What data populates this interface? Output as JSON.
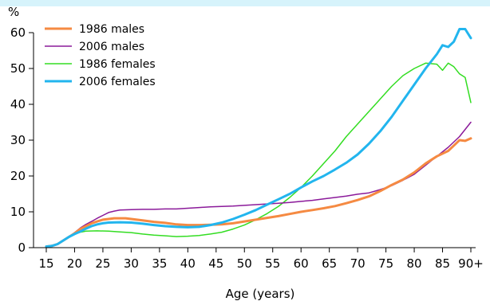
{
  "chart_data": {
    "type": "line",
    "title": "",
    "xlabel": "Age (years)",
    "ylabel": "%",
    "x_tick_labels": [
      "15",
      "20",
      "25",
      "30",
      "35",
      "40",
      "45",
      "50",
      "55",
      "60",
      "65",
      "70",
      "75",
      "80",
      "85",
      "90+"
    ],
    "y_ticks": [
      0,
      10,
      20,
      30,
      40,
      50,
      60
    ],
    "xlim": [
      15,
      90
    ],
    "ylim": [
      0,
      60
    ],
    "grid": false,
    "legend_position": "top-left",
    "series": [
      {
        "name": "1986 males",
        "color": "#f58a42",
        "points": [
          [
            15,
            0.3
          ],
          [
            16,
            0.5
          ],
          [
            17,
            1.0
          ],
          [
            18,
            2.0
          ],
          [
            19,
            3.0
          ],
          [
            20,
            4.0
          ],
          [
            21,
            5.2
          ],
          [
            22,
            6.0
          ],
          [
            23,
            6.8
          ],
          [
            24,
            7.3
          ],
          [
            25,
            7.8
          ],
          [
            26,
            8.0
          ],
          [
            27,
            8.2
          ],
          [
            28,
            8.2
          ],
          [
            29,
            8.2
          ],
          [
            30,
            8.0
          ],
          [
            32,
            7.6
          ],
          [
            34,
            7.2
          ],
          [
            36,
            6.9
          ],
          [
            38,
            6.5
          ],
          [
            40,
            6.3
          ],
          [
            42,
            6.3
          ],
          [
            44,
            6.4
          ],
          [
            46,
            6.5
          ],
          [
            48,
            6.8
          ],
          [
            50,
            7.3
          ],
          [
            52,
            7.8
          ],
          [
            54,
            8.3
          ],
          [
            56,
            8.8
          ],
          [
            58,
            9.4
          ],
          [
            60,
            10.0
          ],
          [
            62,
            10.5
          ],
          [
            64,
            11.0
          ],
          [
            66,
            11.6
          ],
          [
            68,
            12.4
          ],
          [
            70,
            13.3
          ],
          [
            72,
            14.3
          ],
          [
            74,
            15.8
          ],
          [
            76,
            17.5
          ],
          [
            78,
            19.0
          ],
          [
            80,
            21.0
          ],
          [
            82,
            23.5
          ],
          [
            84,
            25.5
          ],
          [
            86,
            27.0
          ],
          [
            87,
            28.5
          ],
          [
            88,
            30.0
          ],
          [
            89,
            29.8
          ],
          [
            90,
            30.5
          ]
        ]
      },
      {
        "name": "2006 males",
        "color": "#8b1a9a",
        "points": [
          [
            15,
            0.3
          ],
          [
            16,
            0.5
          ],
          [
            17,
            1.0
          ],
          [
            18,
            2.0
          ],
          [
            19,
            3.0
          ],
          [
            20,
            4.2
          ],
          [
            21,
            5.5
          ],
          [
            22,
            6.5
          ],
          [
            23,
            7.3
          ],
          [
            24,
            8.2
          ],
          [
            25,
            9.0
          ],
          [
            26,
            9.8
          ],
          [
            27,
            10.2
          ],
          [
            28,
            10.5
          ],
          [
            30,
            10.6
          ],
          [
            32,
            10.7
          ],
          [
            34,
            10.7
          ],
          [
            36,
            10.8
          ],
          [
            38,
            10.8
          ],
          [
            40,
            11.0
          ],
          [
            42,
            11.2
          ],
          [
            44,
            11.4
          ],
          [
            46,
            11.5
          ],
          [
            48,
            11.6
          ],
          [
            50,
            11.8
          ],
          [
            52,
            12.0
          ],
          [
            54,
            12.2
          ],
          [
            56,
            12.4
          ],
          [
            58,
            12.6
          ],
          [
            60,
            12.9
          ],
          [
            62,
            13.2
          ],
          [
            64,
            13.6
          ],
          [
            66,
            14.0
          ],
          [
            68,
            14.4
          ],
          [
            70,
            14.9
          ],
          [
            72,
            15.3
          ],
          [
            74,
            16.2
          ],
          [
            76,
            17.3
          ],
          [
            78,
            18.8
          ],
          [
            80,
            20.5
          ],
          [
            82,
            23.0
          ],
          [
            84,
            25.5
          ],
          [
            86,
            28.0
          ],
          [
            88,
            31.0
          ],
          [
            90,
            35.0
          ]
        ]
      },
      {
        "name": "1986 females",
        "color": "#33dd22",
        "points": [
          [
            15,
            0.3
          ],
          [
            16,
            0.5
          ],
          [
            17,
            1.0
          ],
          [
            18,
            2.0
          ],
          [
            19,
            3.0
          ],
          [
            20,
            3.8
          ],
          [
            21,
            4.3
          ],
          [
            22,
            4.6
          ],
          [
            24,
            4.7
          ],
          [
            26,
            4.6
          ],
          [
            28,
            4.4
          ],
          [
            30,
            4.2
          ],
          [
            32,
            3.8
          ],
          [
            34,
            3.5
          ],
          [
            36,
            3.3
          ],
          [
            38,
            3.1
          ],
          [
            40,
            3.2
          ],
          [
            42,
            3.4
          ],
          [
            44,
            3.8
          ],
          [
            46,
            4.3
          ],
          [
            48,
            5.2
          ],
          [
            50,
            6.3
          ],
          [
            52,
            7.8
          ],
          [
            54,
            9.5
          ],
          [
            56,
            11.5
          ],
          [
            58,
            14.0
          ],
          [
            60,
            16.8
          ],
          [
            62,
            20.0
          ],
          [
            64,
            23.5
          ],
          [
            66,
            27.0
          ],
          [
            68,
            31.0
          ],
          [
            70,
            34.5
          ],
          [
            72,
            38.0
          ],
          [
            74,
            41.5
          ],
          [
            76,
            45.0
          ],
          [
            78,
            48.0
          ],
          [
            80,
            50.0
          ],
          [
            82,
            51.5
          ],
          [
            84,
            51.2
          ],
          [
            85,
            49.5
          ],
          [
            86,
            51.5
          ],
          [
            87,
            50.5
          ],
          [
            88,
            48.5
          ],
          [
            89,
            47.5
          ],
          [
            90,
            40.5
          ]
        ]
      },
      {
        "name": "2006 females",
        "color": "#22b5ee",
        "points": [
          [
            15,
            0.3
          ],
          [
            16,
            0.5
          ],
          [
            17,
            1.0
          ],
          [
            18,
            2.0
          ],
          [
            19,
            3.0
          ],
          [
            20,
            3.8
          ],
          [
            21,
            4.5
          ],
          [
            22,
            5.3
          ],
          [
            23,
            6.0
          ],
          [
            24,
            6.5
          ],
          [
            25,
            6.8
          ],
          [
            26,
            7.0
          ],
          [
            28,
            7.1
          ],
          [
            30,
            7.0
          ],
          [
            32,
            6.7
          ],
          [
            34,
            6.3
          ],
          [
            36,
            6.0
          ],
          [
            38,
            5.8
          ],
          [
            40,
            5.7
          ],
          [
            42,
            5.8
          ],
          [
            44,
            6.3
          ],
          [
            46,
            7.0
          ],
          [
            48,
            8.0
          ],
          [
            50,
            9.2
          ],
          [
            52,
            10.5
          ],
          [
            54,
            12.0
          ],
          [
            56,
            13.5
          ],
          [
            58,
            15.0
          ],
          [
            60,
            16.8
          ],
          [
            62,
            18.5
          ],
          [
            64,
            20.0
          ],
          [
            66,
            21.8
          ],
          [
            68,
            23.7
          ],
          [
            70,
            26.0
          ],
          [
            72,
            29.0
          ],
          [
            74,
            32.5
          ],
          [
            76,
            36.5
          ],
          [
            78,
            41.0
          ],
          [
            80,
            45.5
          ],
          [
            82,
            50.0
          ],
          [
            84,
            54.0
          ],
          [
            85,
            56.5
          ],
          [
            86,
            56.0
          ],
          [
            87,
            57.5
          ],
          [
            88,
            61.0
          ],
          [
            89,
            61.0
          ],
          [
            90,
            58.5
          ]
        ]
      }
    ]
  }
}
